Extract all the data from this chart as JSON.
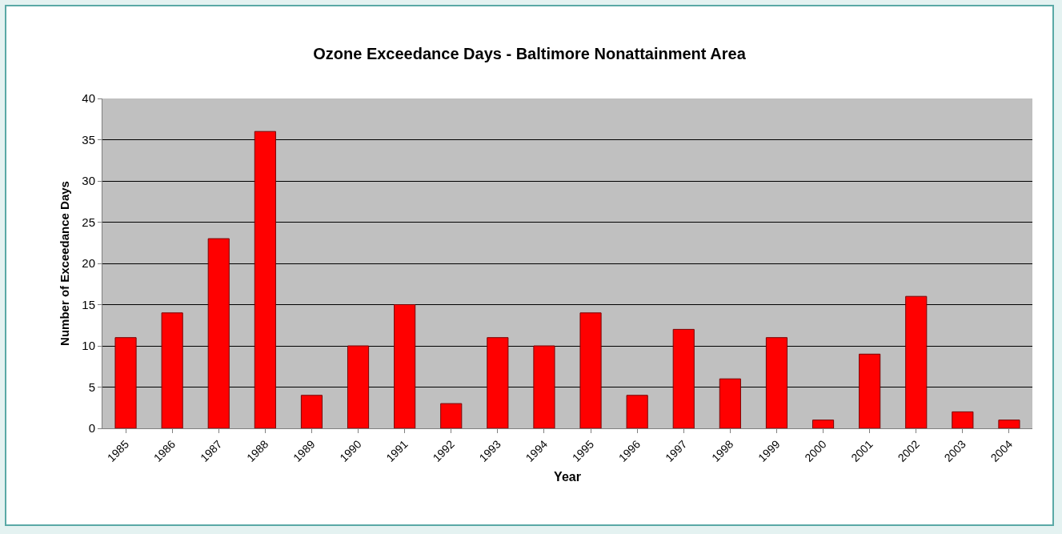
{
  "chart_data": {
    "type": "bar",
    "title": "Ozone Exceedance Days - Baltimore Nonattainment Area",
    "xlabel": "Year",
    "ylabel": "Number of Exceedance Days",
    "categories": [
      "1985",
      "1986",
      "1987",
      "1988",
      "1989",
      "1990",
      "1991",
      "1992",
      "1993",
      "1994",
      "1995",
      "1996",
      "1997",
      "1998",
      "1999",
      "2000",
      "2001",
      "2002",
      "2003",
      "2004"
    ],
    "values": [
      11,
      14,
      23,
      36,
      4,
      10,
      15,
      3,
      11,
      10,
      14,
      4,
      12,
      6,
      11,
      1,
      9,
      16,
      2,
      1
    ],
    "color": "#ff0000",
    "ylim": [
      0,
      40
    ],
    "yticks": [
      0,
      5,
      10,
      15,
      20,
      25,
      30,
      35,
      40
    ],
    "grid": "y"
  }
}
